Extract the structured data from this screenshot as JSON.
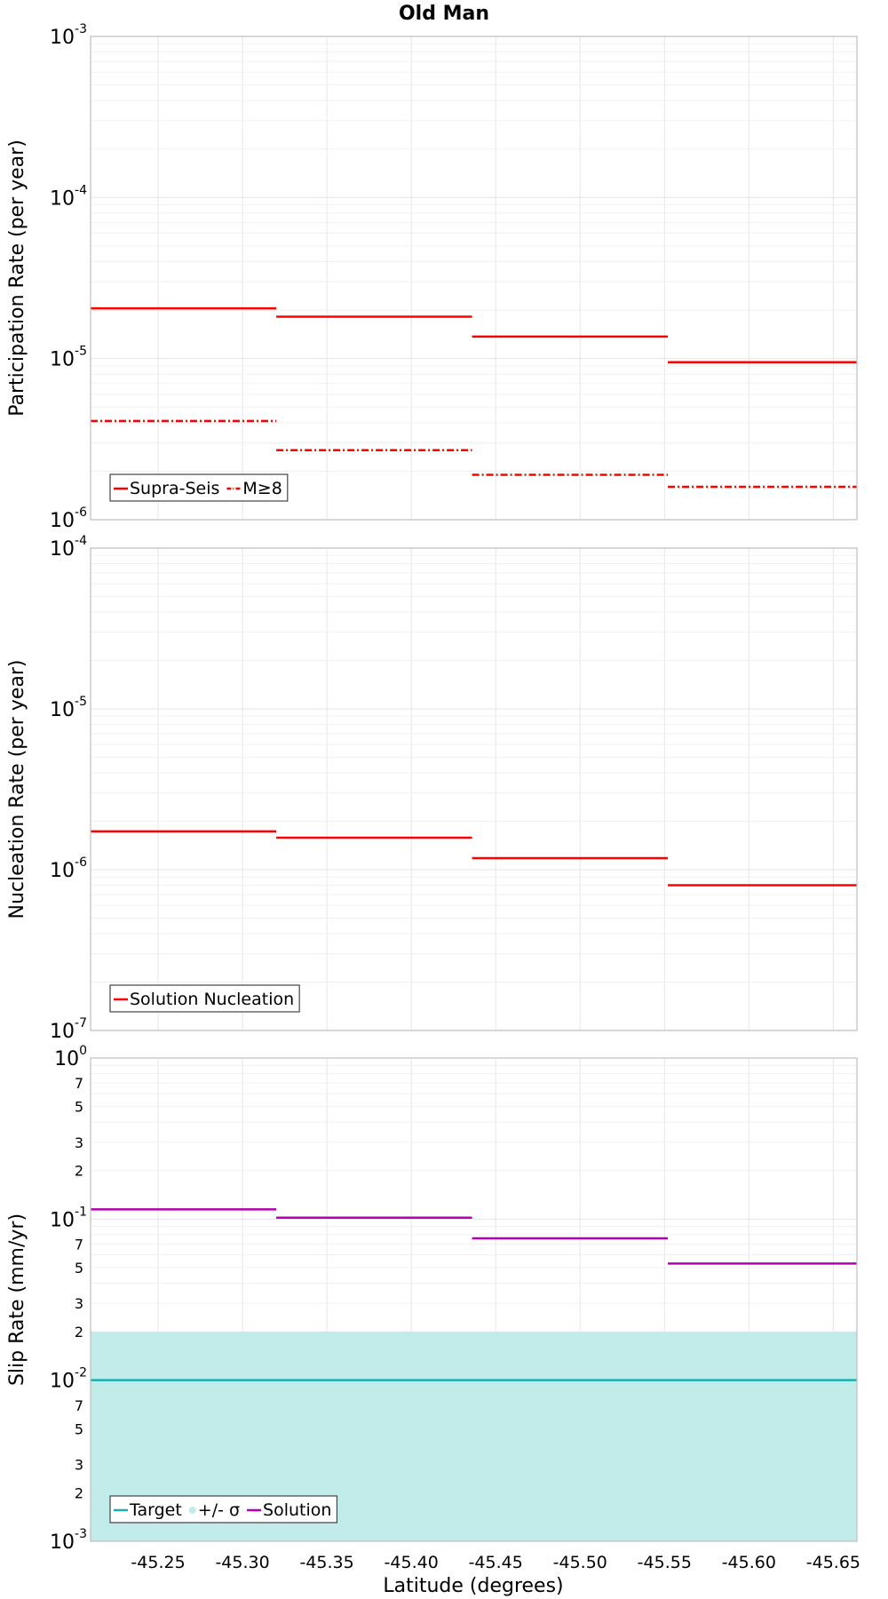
{
  "figure": {
    "title": "Old Man",
    "xlabel": "Latitude (degrees)"
  },
  "chart_data": [
    {
      "type": "line",
      "title": "Old Man",
      "xlabel": "",
      "ylabel": "Participation Rate (per year)",
      "yscale": "log",
      "ylim": [
        1e-06,
        0.001
      ],
      "xlim": [
        -45.21,
        -45.664
      ],
      "x_reversed": true,
      "grid": true,
      "legend": "bottom-left",
      "x_ticks": [
        -45.25,
        -45.3,
        -45.35,
        -45.4,
        -45.45,
        -45.5,
        -45.55,
        -45.6,
        -45.65
      ],
      "y_ticks": [
        {
          "base": "10",
          "exp": "-3",
          "value": 0.001
        },
        {
          "base": "10",
          "exp": "-4",
          "value": 0.0001
        },
        {
          "base": "10",
          "exp": "-5",
          "value": 1e-05
        },
        {
          "base": "10",
          "exp": "-6",
          "value": 1e-06
        }
      ],
      "series": [
        {
          "name": "Supra-Seis",
          "style": "solid",
          "color": "#ff0000",
          "segments": [
            {
              "x0": -45.21,
              "x1": -45.32,
              "y": 2.05e-05
            },
            {
              "x0": -45.32,
              "x1": -45.436,
              "y": 1.82e-05
            },
            {
              "x0": -45.436,
              "x1": -45.552,
              "y": 1.37e-05
            },
            {
              "x0": -45.552,
              "x1": -45.664,
              "y": 9.5e-06
            }
          ]
        },
        {
          "name": "M≥8",
          "style": "dashdot",
          "color": "#ff0000",
          "segments": [
            {
              "x0": -45.21,
              "x1": -45.32,
              "y": 4.1e-06
            },
            {
              "x0": -45.32,
              "x1": -45.436,
              "y": 2.7e-06
            },
            {
              "x0": -45.436,
              "x1": -45.552,
              "y": 1.9e-06
            },
            {
              "x0": -45.552,
              "x1": -45.664,
              "y": 1.6e-06
            }
          ]
        }
      ]
    },
    {
      "type": "line",
      "title": "",
      "xlabel": "",
      "ylabel": "Nucleation Rate (per year)",
      "yscale": "log",
      "ylim": [
        1e-07,
        0.0001
      ],
      "xlim": [
        -45.21,
        -45.664
      ],
      "x_reversed": true,
      "grid": true,
      "legend": "bottom-left",
      "x_ticks": [],
      "y_ticks": [
        {
          "base": "10",
          "exp": "-4",
          "value": 0.0001
        },
        {
          "base": "10",
          "exp": "-5",
          "value": 1e-05
        },
        {
          "base": "10",
          "exp": "-6",
          "value": 1e-06
        },
        {
          "base": "10",
          "exp": "-7",
          "value": 1e-07
        }
      ],
      "series": [
        {
          "name": "Solution Nucleation",
          "style": "solid",
          "color": "#ff0000",
          "segments": [
            {
              "x0": -45.21,
              "x1": -45.32,
              "y": 1.73e-06
            },
            {
              "x0": -45.32,
              "x1": -45.436,
              "y": 1.58e-06
            },
            {
              "x0": -45.436,
              "x1": -45.552,
              "y": 1.18e-06
            },
            {
              "x0": -45.552,
              "x1": -45.664,
              "y": 8e-07
            }
          ]
        }
      ]
    },
    {
      "type": "line",
      "title": "",
      "xlabel": "Latitude (degrees)",
      "ylabel": "Slip Rate (mm/yr)",
      "yscale": "log",
      "ylim": [
        0.001,
        1
      ],
      "xlim": [
        -45.21,
        -45.664
      ],
      "x_reversed": true,
      "grid": true,
      "legend": "bottom-left",
      "x_ticks": [],
      "y_ticks": [
        {
          "base": "10",
          "exp": "0",
          "value": 1
        },
        {
          "base": "10",
          "exp": "-1",
          "value": 0.1
        },
        {
          "base": "10",
          "exp": "-2",
          "value": 0.01
        },
        {
          "base": "10",
          "exp": "-3",
          "value": 0.001
        }
      ],
      "y_minor_labels": [
        {
          "value": 0.7,
          "label": "7"
        },
        {
          "value": 0.5,
          "label": "5"
        },
        {
          "value": 0.3,
          "label": "3"
        },
        {
          "value": 0.2,
          "label": "2"
        },
        {
          "value": 0.07,
          "label": "7"
        },
        {
          "value": 0.05,
          "label": "5"
        },
        {
          "value": 0.03,
          "label": "3"
        },
        {
          "value": 0.02,
          "label": "2"
        },
        {
          "value": 0.007,
          "label": "7"
        },
        {
          "value": 0.005,
          "label": "5"
        },
        {
          "value": 0.003,
          "label": "3"
        },
        {
          "value": 0.002,
          "label": "2"
        }
      ],
      "band": {
        "name": "+/- σ",
        "color": "#c2ecea",
        "y0": 0.001,
        "y1": 0.02
      },
      "series": [
        {
          "name": "Target",
          "style": "solid",
          "color": "#1aaeae",
          "segments": [
            {
              "x0": -45.21,
              "x1": -45.664,
              "y": 0.01
            }
          ]
        },
        {
          "name": "Solution",
          "style": "solid",
          "color": "#b300b3",
          "segments": [
            {
              "x0": -45.21,
              "x1": -45.32,
              "y": 0.115
            },
            {
              "x0": -45.32,
              "x1": -45.436,
              "y": 0.102
            },
            {
              "x0": -45.436,
              "x1": -45.552,
              "y": 0.076
            },
            {
              "x0": -45.552,
              "x1": -45.664,
              "y": 0.053
            }
          ]
        }
      ]
    }
  ]
}
